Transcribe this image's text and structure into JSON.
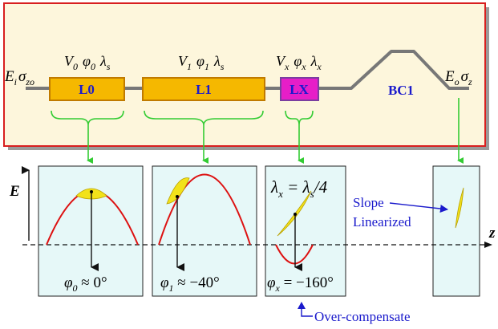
{
  "beamline": {
    "input_label": {
      "main": "E",
      "sub": "i",
      "sigma": "σ",
      "sigma_sub": "zo"
    },
    "output_label": {
      "main": "E",
      "sub": "o",
      "sigma": "σ",
      "sigma_sub": "z"
    },
    "sections": [
      {
        "name": "L0",
        "params": [
          {
            "s": "V",
            "sub": "0"
          },
          {
            "s": "φ",
            "sub": "0"
          },
          {
            "s": "λ",
            "sub": "s"
          }
        ]
      },
      {
        "name": "L1",
        "params": [
          {
            "s": "V",
            "sub": "1"
          },
          {
            "s": "φ",
            "sub": "1"
          },
          {
            "s": "λ",
            "sub": "s"
          }
        ]
      },
      {
        "name": "LX",
        "params": [
          {
            "s": "V",
            "sub": "x"
          },
          {
            "s": "φ",
            "sub": "x"
          },
          {
            "s": "λ",
            "sub": "x"
          }
        ]
      }
    ],
    "chicane_label": "BC1",
    "colors": {
      "panel_bg": "#fdf6dc",
      "panel_border": "#d81f1f",
      "linac": "#f5b800",
      "linac_x": "#e61ec8",
      "arrow": "#33cc33"
    }
  },
  "phase_space": {
    "y_axis_label": "E",
    "z_axis_label": "z",
    "panels": [
      {
        "phase_label": {
          "s": "φ",
          "sub": "0",
          "rest": " ≈ 0°"
        }
      },
      {
        "phase_label": {
          "s": "φ",
          "sub": "1",
          "rest": " ≈ −40°"
        }
      },
      {
        "phase_label": {
          "s": "φ",
          "sub": "x",
          "rest": " = −160°"
        },
        "wavelength_relation": {
          "a": "λ",
          "a_sub": "x",
          "eq": " = λ",
          "b_sub": "s",
          "rest": "/4"
        }
      }
    ],
    "slope_note_line1": "Slope",
    "slope_note_line2": "Linearized",
    "over_note": "Over-compensate",
    "colors": {
      "panel_bg": "#e6f8f8",
      "rf_curve": "#dd1111",
      "bunch": "#f2e21a",
      "note": "#1a1acc"
    }
  }
}
